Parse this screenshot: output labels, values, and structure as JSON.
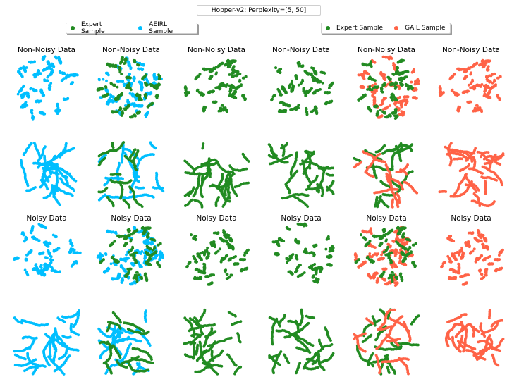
{
  "figure": {
    "title": "Hopper-v2: Perplexity=[5, 50]"
  },
  "legends": {
    "left": {
      "entries": [
        {
          "label": "Expert Sample",
          "color": "#228b22"
        },
        {
          "label": "AEIRL Sample",
          "color": "#00bfff"
        }
      ]
    },
    "right": {
      "entries": [
        {
          "label": "Expert Sample",
          "color": "#228b22"
        },
        {
          "label": "GAIL Sample",
          "color": "#ff6347"
        }
      ]
    }
  },
  "colors": {
    "expert": "#228b22",
    "aeirl": "#00bfff",
    "gail": "#ff6347"
  },
  "chart_data": {
    "type": "scatter",
    "description_note": "",
    "panel_titles": {
      "row1": [
        "Non-Noisy Data",
        "Non-Noisy Data",
        "Non-Noisy Data",
        "Non-Noisy Data",
        "Non-Noisy Data",
        "Non-Noisy Data"
      ],
      "row3": [
        "Noisy Data",
        "Noisy Data",
        "Noisy Data",
        "Noisy Data",
        "Noisy Data",
        "Noisy Data"
      ]
    },
    "grid": false,
    "axes": "off",
    "panels": [
      {
        "row": 0,
        "col": 0,
        "series": [
          "aeirl"
        ],
        "pattern": "disk-clusters"
      },
      {
        "row": 0,
        "col": 1,
        "series": [
          "aeirl",
          "expert"
        ],
        "pattern": "disk-mixed"
      },
      {
        "row": 0,
        "col": 2,
        "series": [
          "expert"
        ],
        "pattern": "disk-clusters"
      },
      {
        "row": 0,
        "col": 3,
        "series": [
          "expert"
        ],
        "pattern": "disk-clusters"
      },
      {
        "row": 0,
        "col": 4,
        "series": [
          "gail",
          "expert"
        ],
        "pattern": "disk-mixed"
      },
      {
        "row": 0,
        "col": 5,
        "series": [
          "gail"
        ],
        "pattern": "disk-clusters"
      },
      {
        "row": 1,
        "col": 0,
        "series": [
          "aeirl"
        ],
        "pattern": "curves"
      },
      {
        "row": 1,
        "col": 1,
        "series": [
          "aeirl",
          "expert"
        ],
        "pattern": "curves-mixed"
      },
      {
        "row": 1,
        "col": 2,
        "series": [
          "expert"
        ],
        "pattern": "curves"
      },
      {
        "row": 1,
        "col": 3,
        "series": [
          "expert"
        ],
        "pattern": "curves"
      },
      {
        "row": 1,
        "col": 4,
        "series": [
          "expert",
          "gail"
        ],
        "pattern": "curves-mixed"
      },
      {
        "row": 1,
        "col": 5,
        "series": [
          "gail"
        ],
        "pattern": "curves"
      },
      {
        "row": 2,
        "col": 0,
        "series": [
          "aeirl"
        ],
        "pattern": "disk-clusters"
      },
      {
        "row": 2,
        "col": 1,
        "series": [
          "aeirl",
          "expert"
        ],
        "pattern": "disk-mixed"
      },
      {
        "row": 2,
        "col": 2,
        "series": [
          "expert"
        ],
        "pattern": "disk-clusters"
      },
      {
        "row": 2,
        "col": 3,
        "series": [
          "expert"
        ],
        "pattern": "disk-clusters"
      },
      {
        "row": 2,
        "col": 4,
        "series": [
          "gail",
          "expert"
        ],
        "pattern": "disk-mixed"
      },
      {
        "row": 2,
        "col": 5,
        "series": [
          "gail"
        ],
        "pattern": "disk-clusters"
      },
      {
        "row": 3,
        "col": 0,
        "series": [
          "aeirl"
        ],
        "pattern": "curves"
      },
      {
        "row": 3,
        "col": 1,
        "series": [
          "aeirl",
          "expert"
        ],
        "pattern": "curves-mixed"
      },
      {
        "row": 3,
        "col": 2,
        "series": [
          "expert"
        ],
        "pattern": "curves"
      },
      {
        "row": 3,
        "col": 3,
        "series": [
          "expert"
        ],
        "pattern": "curves"
      },
      {
        "row": 3,
        "col": 4,
        "series": [
          "expert",
          "gail"
        ],
        "pattern": "curves-mixed"
      },
      {
        "row": 3,
        "col": 5,
        "series": [
          "gail"
        ],
        "pattern": "curves"
      }
    ]
  }
}
